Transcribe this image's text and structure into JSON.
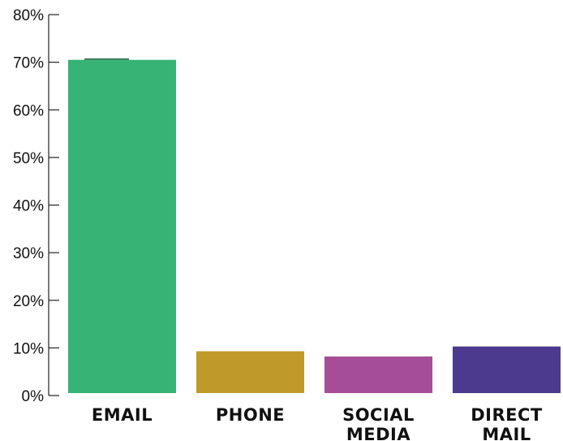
{
  "chart_data": {
    "type": "bar",
    "title": "",
    "xlabel": "",
    "ylabel": "",
    "ylim": [
      0,
      80
    ],
    "y_tick_labels": [
      "0%",
      "10%",
      "20%",
      "30%",
      "40%",
      "50%",
      "60%",
      "70%",
      "80%"
    ],
    "y_ticks": [
      0,
      10,
      20,
      30,
      40,
      50,
      60,
      70,
      80
    ],
    "categories": [
      "EMAIL",
      "PHONE",
      "SOCIAL MEDIA",
      "DIRECT MAIL"
    ],
    "category_lines": [
      [
        "EMAIL"
      ],
      [
        "PHONE"
      ],
      [
        "SOCIAL",
        "MEDIA"
      ],
      [
        "DIRECT",
        "MAIL"
      ]
    ],
    "values": [
      70.5,
      9.3,
      8.2,
      10.3
    ],
    "colors": [
      "#36b375",
      "#c0992b",
      "#a54d96",
      "#4b3a8e"
    ],
    "grid": false,
    "legend": "none"
  }
}
